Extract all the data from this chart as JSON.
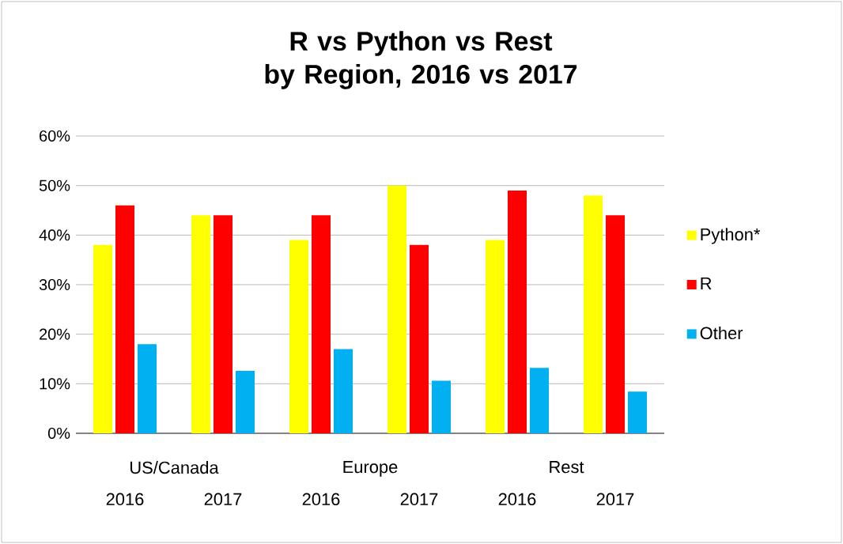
{
  "chart_data": {
    "type": "bar",
    "title": "R vs Python vs Rest\nby Region, 2016 vs 2017",
    "categories": [
      "2016",
      "2017",
      "2016",
      "2017",
      "2016",
      "2017"
    ],
    "series": [
      {
        "name": "Python*",
        "color": "#ffff00",
        "values": [
          38,
          44,
          39,
          50,
          39,
          48
        ]
      },
      {
        "name": "R",
        "color": "#ff0000",
        "values": [
          46,
          44,
          44,
          38,
          49,
          44
        ]
      },
      {
        "name": "Other",
        "color": "#00b0f0",
        "values": [
          18,
          12.6,
          17,
          10.6,
          13.2,
          8.4
        ]
      }
    ],
    "annotations": [
      "US/Canada",
      "Europe",
      "Rest"
    ],
    "ylim": [
      0,
      60
    ],
    "yticks": [
      {
        "value": 0,
        "label": "0%"
      },
      {
        "value": 10,
        "label": "10%"
      },
      {
        "value": 20,
        "label": "20%"
      },
      {
        "value": 30,
        "label": "30%"
      },
      {
        "value": 40,
        "label": "40%"
      },
      {
        "value": 50,
        "label": "50%"
      },
      {
        "value": 60,
        "label": "60%"
      }
    ],
    "grid": "y",
    "legend": "right"
  }
}
